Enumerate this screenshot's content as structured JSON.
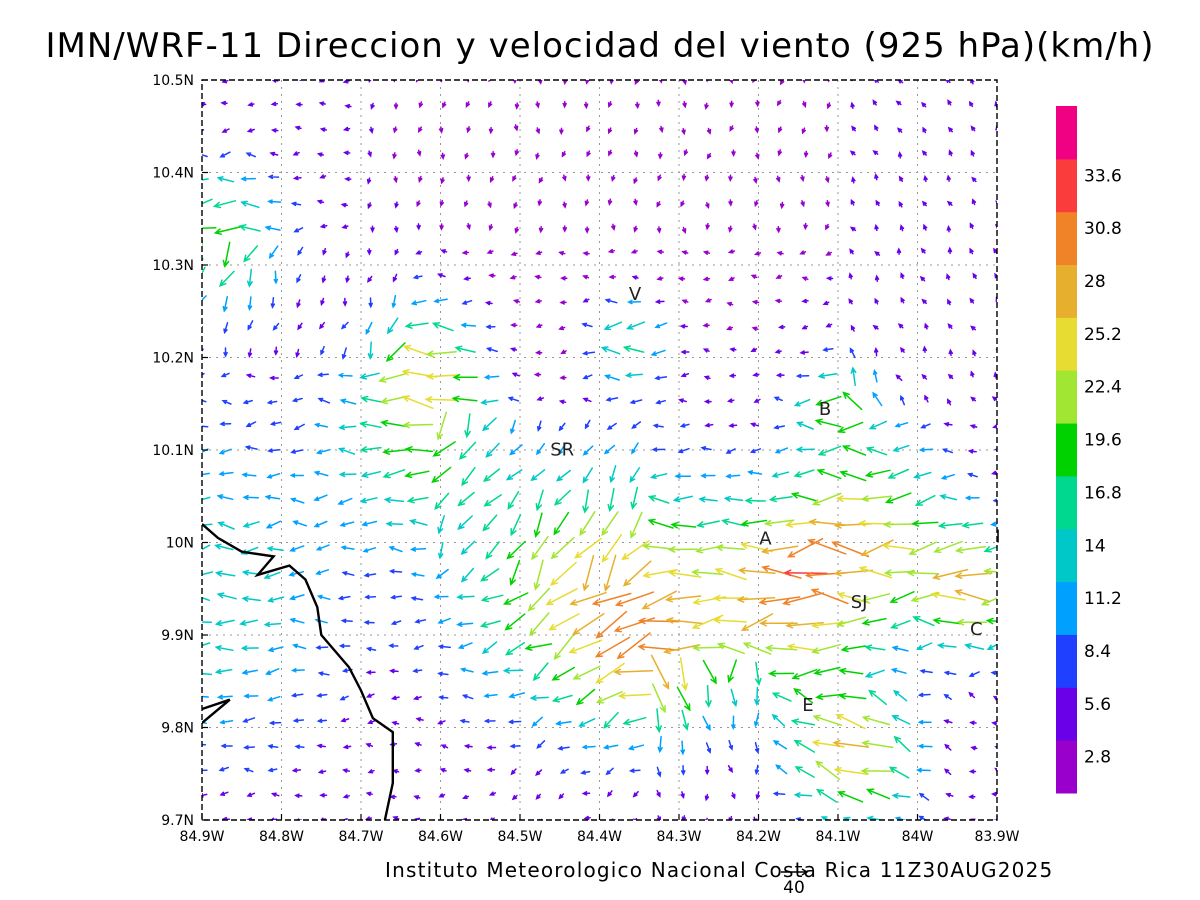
{
  "title": "IMN/WRF-11 Direccion y velocidad del viento (925 hPa)(km/h)",
  "footer": "Instituto Meteorologico Nacional Costa Rica 11Z30AUG2025",
  "reference_vector": {
    "label": "40",
    "value_kmh": 40
  },
  "map": {
    "lon_range": [
      -84.9,
      -83.9
    ],
    "lat_range": [
      9.7,
      10.5
    ],
    "lon_tick_labels": [
      "84.9W",
      "84.8W",
      "84.7W",
      "84.6W",
      "84.5W",
      "84.4W",
      "84.3W",
      "84.2W",
      "84.1W",
      "84W",
      "83.9W"
    ],
    "lat_tick_labels": [
      "9.7N",
      "9.8N",
      "9.9N",
      "10N",
      "10.1N",
      "10.2N",
      "10.3N",
      "10.4N",
      "10.5N"
    ],
    "grid": "dotted",
    "coastline": [
      [
        -84.9,
        10.02
      ],
      [
        -84.88,
        10.005
      ],
      [
        -84.85,
        9.99
      ],
      [
        -84.81,
        9.985
      ],
      [
        -84.83,
        9.965
      ],
      [
        -84.79,
        9.975
      ],
      [
        -84.77,
        9.96
      ],
      [
        -84.755,
        9.93
      ],
      [
        -84.75,
        9.9
      ],
      [
        -84.735,
        9.885
      ],
      [
        -84.715,
        9.865
      ],
      [
        -84.7,
        9.84
      ],
      [
        -84.685,
        9.81
      ],
      [
        -84.66,
        9.795
      ],
      [
        -84.66,
        9.74
      ],
      [
        -84.67,
        9.7
      ]
    ],
    "coastline_south": [
      [
        -84.9,
        9.805
      ],
      [
        -84.865,
        9.83
      ],
      [
        -84.9,
        9.82
      ]
    ],
    "places": [
      {
        "label": "V",
        "lon": -84.363,
        "lat": 10.262
      },
      {
        "label": "B",
        "lon": -84.124,
        "lat": 10.138
      },
      {
        "label": "SR",
        "lon": -84.462,
        "lat": 10.094
      },
      {
        "label": "A",
        "lon": -84.199,
        "lat": 9.998
      },
      {
        "label": "SJ",
        "lon": -84.084,
        "lat": 9.929
      },
      {
        "label": "C",
        "lon": -83.934,
        "lat": 9.9
      },
      {
        "label": "E",
        "lon": -84.145,
        "lat": 9.818
      },
      {
        "label": "I",
        "lon": -83.902,
        "lat": 10.0
      }
    ]
  },
  "color_scale": {
    "unit": "km/h",
    "colors": [
      "#9900cc",
      "#6a00e8",
      "#2040ff",
      "#00a0ff",
      "#00c8c8",
      "#00d890",
      "#00d200",
      "#a0e632",
      "#e6dc32",
      "#e6af2d",
      "#f08228",
      "#fa3c3c",
      "#f00082"
    ],
    "labels": [
      "2.8",
      "5.6",
      "8.4",
      "11.2",
      "14",
      "16.8",
      "19.6",
      "22.4",
      "25.2",
      "28",
      "30.8",
      "33.6"
    ]
  }
}
